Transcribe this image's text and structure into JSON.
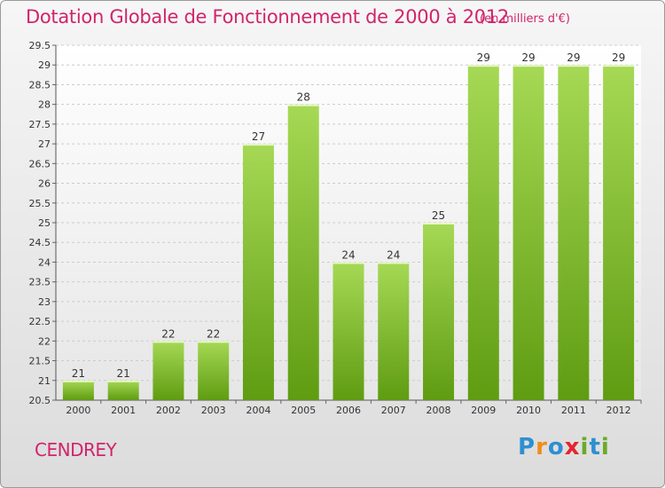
{
  "header": {
    "title": "Dotation Globale de Fonctionnement de 2000 à 2012",
    "unit": "(en milliers d'€)"
  },
  "footer": {
    "town": "CENDREY",
    "logo_letters": [
      "P",
      "r",
      "o",
      "x",
      "i",
      "t",
      "i"
    ]
  },
  "colors": {
    "title": "#d1246b",
    "bar_light": "#a6d955",
    "bar_dark": "#5f9c12",
    "logo": [
      "#2e8fd1",
      "#f28c1a",
      "#2e8fd1",
      "#e5242d",
      "#6aaa2a",
      "#2e8fd1",
      "#6aaa2a"
    ]
  },
  "chart_data": {
    "type": "bar",
    "title": "Dotation Globale de Fonctionnement de 2000 à 2012",
    "subtitle": "(en milliers d'€)",
    "xlabel": "",
    "ylabel": "",
    "categories": [
      "2000",
      "2001",
      "2002",
      "2003",
      "2004",
      "2005",
      "2006",
      "2007",
      "2008",
      "2009",
      "2010",
      "2011",
      "2012"
    ],
    "values": [
      21,
      21,
      22,
      22,
      27,
      28,
      24,
      24,
      25,
      29,
      29,
      29,
      29
    ],
    "value_labels": [
      "21",
      "21",
      "22",
      "22",
      "27",
      "28",
      "24",
      "24",
      "25",
      "29",
      "29",
      "29",
      "29"
    ],
    "ylim": [
      20.5,
      29.5
    ],
    "yticks": [
      "20.5",
      "21",
      "21.5",
      "22",
      "22.5",
      "23",
      "23.5",
      "24",
      "24.5",
      "25",
      "25.5",
      "26",
      "26.5",
      "27",
      "27.5",
      "28",
      "28.5",
      "29",
      "29.5"
    ],
    "grid": true,
    "legend": "none"
  }
}
